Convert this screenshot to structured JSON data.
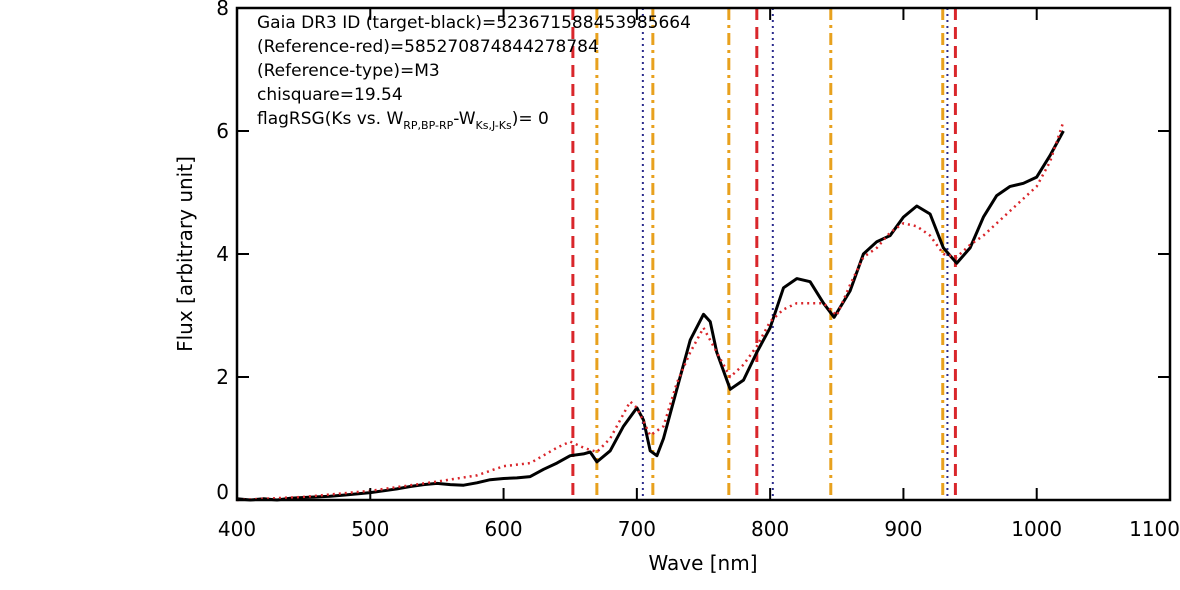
{
  "chart_data": {
    "type": "line",
    "xlabel": "Wave [nm]",
    "ylabel": "Flux [arbitrary unit]",
    "xlim": [
      400,
      1100
    ],
    "ylim": [
      0,
      8
    ],
    "xticks": [
      400,
      500,
      600,
      700,
      800,
      900,
      1000,
      1100
    ],
    "yticks": [
      0,
      2,
      4,
      6,
      8
    ],
    "annotations": [
      "Gaia DR3 ID (target-black)=523671588453985664",
      "(Reference-red)=585270874844278784",
      "(Reference-type)=M3",
      "chisquare=19.54"
    ],
    "flag_annotation": {
      "start": "flagRSG(Ks vs. W",
      "sub1": "RP,BP-RP",
      "mid": "-W",
      "sub2": "Ks,J-Ks",
      "end": ")= 0"
    },
    "series": [
      {
        "color": "#000000",
        "style": "solid",
        "x": [
          400,
          410,
          420,
          430,
          440,
          450,
          460,
          470,
          480,
          490,
          500,
          510,
          520,
          530,
          540,
          550,
          560,
          570,
          580,
          590,
          600,
          610,
          620,
          630,
          640,
          650,
          660,
          665,
          670,
          680,
          690,
          700,
          705,
          710,
          715,
          720,
          730,
          740,
          750,
          755,
          760,
          770,
          780,
          790,
          800,
          810,
          820,
          830,
          840,
          848,
          860,
          870,
          880,
          890,
          900,
          910,
          920,
          930,
          940,
          950,
          960,
          970,
          980,
          990,
          1000,
          1010,
          1020
        ],
        "values": [
          0.02,
          0.0,
          0.02,
          0.0,
          0.03,
          0.04,
          0.05,
          0.06,
          0.08,
          0.1,
          0.12,
          0.15,
          0.18,
          0.22,
          0.25,
          0.27,
          0.25,
          0.24,
          0.28,
          0.33,
          0.35,
          0.36,
          0.38,
          0.5,
          0.6,
          0.72,
          0.75,
          0.78,
          0.62,
          0.8,
          1.2,
          1.5,
          1.3,
          0.8,
          0.72,
          1.0,
          1.8,
          2.6,
          3.02,
          2.9,
          2.4,
          1.8,
          1.95,
          2.4,
          2.8,
          3.45,
          3.6,
          3.55,
          3.2,
          2.97,
          3.4,
          4.0,
          4.2,
          4.3,
          4.6,
          4.78,
          4.65,
          4.1,
          3.85,
          4.1,
          4.6,
          4.95,
          5.1,
          5.15,
          5.25,
          5.6,
          6.0
        ]
      },
      {
        "color": "#d9262b",
        "style": "dotted",
        "x": [
          400,
          450,
          500,
          550,
          580,
          600,
          620,
          640,
          650,
          660,
          670,
          680,
          690,
          695,
          700,
          710,
          720,
          730,
          740,
          750,
          760,
          770,
          780,
          790,
          800,
          810,
          820,
          840,
          850,
          860,
          870,
          880,
          890,
          900,
          910,
          920,
          930,
          940,
          950,
          960,
          980,
          1000,
          1010,
          1020
        ],
        "values": [
          0.0,
          0.05,
          0.15,
          0.3,
          0.4,
          0.55,
          0.6,
          0.85,
          0.95,
          0.85,
          0.78,
          1.0,
          1.4,
          1.6,
          1.5,
          1.05,
          1.2,
          1.9,
          2.4,
          2.8,
          2.4,
          2.0,
          2.2,
          2.5,
          2.9,
          3.1,
          3.2,
          3.2,
          3.0,
          3.5,
          3.95,
          4.1,
          4.35,
          4.5,
          4.45,
          4.3,
          4.0,
          3.95,
          4.15,
          4.3,
          4.7,
          5.1,
          5.5,
          6.15
        ]
      }
    ],
    "vlines": [
      {
        "x": 652,
        "color": "#d9262b",
        "style": "dashed"
      },
      {
        "x": 790,
        "color": "#d9262b",
        "style": "dashed"
      },
      {
        "x": 939,
        "color": "#d9262b",
        "style": "dashed"
      },
      {
        "x": 670,
        "color": "#e8a11e",
        "style": "dashdot"
      },
      {
        "x": 712,
        "color": "#e8a11e",
        "style": "dashdot"
      },
      {
        "x": 769,
        "color": "#e8a11e",
        "style": "dashdot"
      },
      {
        "x": 845.5,
        "color": "#e8a11e",
        "style": "dashdot"
      },
      {
        "x": 929.5,
        "color": "#e8a11e",
        "style": "dashdot"
      },
      {
        "x": 704.5,
        "color": "#2b2b8c",
        "style": "dotted"
      },
      {
        "x": 802,
        "color": "#2b2b8c",
        "style": "dotted"
      },
      {
        "x": 933,
        "color": "#2b2b8c",
        "style": "dotted"
      }
    ]
  }
}
